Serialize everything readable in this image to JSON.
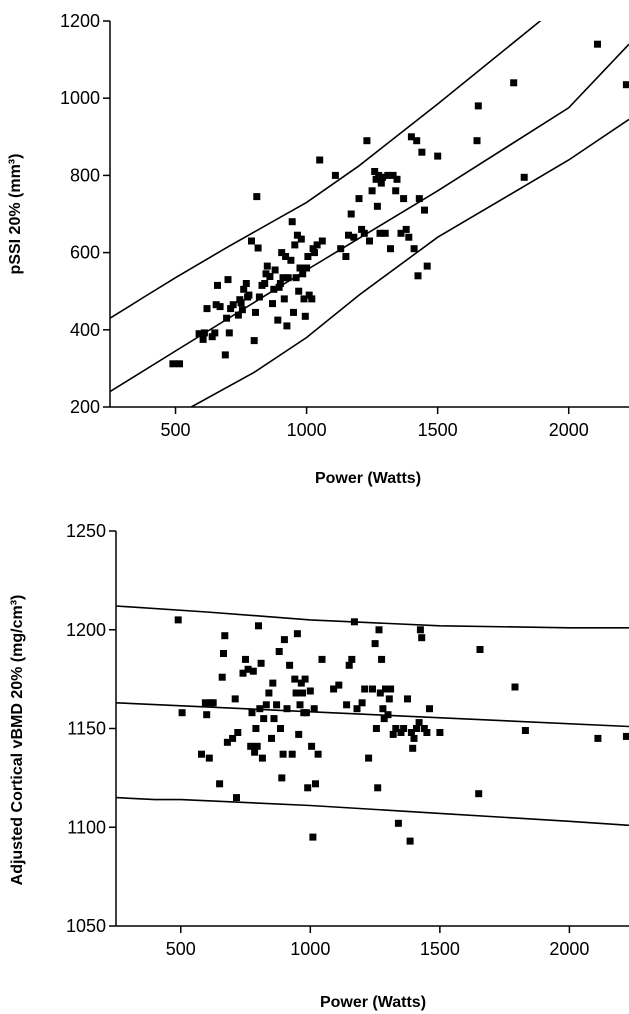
{
  "chart_data": [
    {
      "type": "scatter",
      "xlabel": "Power (Watts)",
      "ylabel": "pSSI 20% (mm³)",
      "xlim": [
        250,
        2230
      ],
      "ylim": [
        200,
        1200
      ],
      "xticks": [
        500,
        1000,
        1500,
        2000
      ],
      "yticks": [
        200,
        400,
        600,
        800,
        1000,
        1200
      ],
      "lines": [
        {
          "points": [
            [
              250,
              430
            ],
            [
              380,
              485
            ],
            [
              500,
              535
            ],
            [
              700,
              615
            ],
            [
              1000,
              730
            ],
            [
              1200,
              825
            ],
            [
              1500,
              985
            ],
            [
              1900,
              1205
            ]
          ]
        },
        {
          "points": [
            [
              250,
              240
            ],
            [
              500,
              345
            ],
            [
              1000,
              555
            ],
            [
              1500,
              760
            ],
            [
              2000,
              975
            ],
            [
              2230,
              1140
            ]
          ]
        },
        {
          "points": [
            [
              560,
              200
            ],
            [
              800,
              290
            ],
            [
              1000,
              380
            ],
            [
              1200,
              490
            ],
            [
              1500,
              640
            ],
            [
              2000,
              840
            ],
            [
              2230,
              945
            ]
          ]
        }
      ],
      "points": [
        [
          490,
          312
        ],
        [
          515,
          312
        ],
        [
          590,
          390
        ],
        [
          605,
          375
        ],
        [
          610,
          392
        ],
        [
          620,
          455
        ],
        [
          640,
          382
        ],
        [
          650,
          392
        ],
        [
          655,
          465
        ],
        [
          660,
          515
        ],
        [
          670,
          460
        ],
        [
          690,
          335
        ],
        [
          695,
          430
        ],
        [
          700,
          530
        ],
        [
          705,
          392
        ],
        [
          710,
          455
        ],
        [
          720,
          465
        ],
        [
          740,
          438
        ],
        [
          745,
          478
        ],
        [
          750,
          470
        ],
        [
          755,
          452
        ],
        [
          760,
          505
        ],
        [
          770,
          520
        ],
        [
          775,
          485
        ],
        [
          780,
          490
        ],
        [
          790,
          630
        ],
        [
          800,
          372
        ],
        [
          805,
          445
        ],
        [
          810,
          745
        ],
        [
          815,
          612
        ],
        [
          820,
          485
        ],
        [
          830,
          515
        ],
        [
          840,
          520
        ],
        [
          845,
          545
        ],
        [
          850,
          565
        ],
        [
          860,
          538
        ],
        [
          870,
          468
        ],
        [
          875,
          505
        ],
        [
          880,
          555
        ],
        [
          890,
          425
        ],
        [
          895,
          510
        ],
        [
          900,
          520
        ],
        [
          905,
          600
        ],
        [
          910,
          535
        ],
        [
          915,
          480
        ],
        [
          920,
          590
        ],
        [
          925,
          410
        ],
        [
          930,
          535
        ],
        [
          940,
          580
        ],
        [
          945,
          680
        ],
        [
          950,
          445
        ],
        [
          955,
          620
        ],
        [
          960,
          535
        ],
        [
          965,
          645
        ],
        [
          970,
          500
        ],
        [
          975,
          560
        ],
        [
          980,
          635
        ],
        [
          985,
          545
        ],
        [
          990,
          480
        ],
        [
          995,
          435
        ],
        [
          1000,
          560
        ],
        [
          1005,
          590
        ],
        [
          1010,
          490
        ],
        [
          1020,
          480
        ],
        [
          1025,
          610
        ],
        [
          1030,
          600
        ],
        [
          1040,
          620
        ],
        [
          1050,
          840
        ],
        [
          1060,
          630
        ],
        [
          1110,
          800
        ],
        [
          1130,
          610
        ],
        [
          1150,
          590
        ],
        [
          1160,
          645
        ],
        [
          1170,
          700
        ],
        [
          1180,
          640
        ],
        [
          1200,
          740
        ],
        [
          1210,
          660
        ],
        [
          1220,
          650
        ],
        [
          1230,
          890
        ],
        [
          1240,
          630
        ],
        [
          1250,
          760
        ],
        [
          1260,
          810
        ],
        [
          1265,
          790
        ],
        [
          1270,
          720
        ],
        [
          1275,
          800
        ],
        [
          1280,
          650
        ],
        [
          1285,
          780
        ],
        [
          1290,
          795
        ],
        [
          1300,
          650
        ],
        [
          1310,
          800
        ],
        [
          1320,
          610
        ],
        [
          1330,
          800
        ],
        [
          1340,
          760
        ],
        [
          1345,
          790
        ],
        [
          1360,
          650
        ],
        [
          1370,
          740
        ],
        [
          1380,
          660
        ],
        [
          1390,
          640
        ],
        [
          1400,
          900
        ],
        [
          1410,
          610
        ],
        [
          1420,
          890
        ],
        [
          1425,
          540
        ],
        [
          1430,
          740
        ],
        [
          1440,
          860
        ],
        [
          1450,
          710
        ],
        [
          1460,
          565
        ],
        [
          1500,
          850
        ],
        [
          1650,
          890
        ],
        [
          1655,
          980
        ],
        [
          1790,
          1040
        ],
        [
          1830,
          795
        ],
        [
          2110,
          1140
        ],
        [
          2220,
          1035
        ]
      ]
    },
    {
      "type": "scatter",
      "xlabel": "Power (Watts)",
      "ylabel": "Adjusted Cortical vBMD 20% (mg/cm³)",
      "xlim": [
        250,
        2230
      ],
      "ylim": [
        1050,
        1250
      ],
      "xticks": [
        500,
        1000,
        1500,
        2000
      ],
      "yticks": [
        1050,
        1100,
        1150,
        1200,
        1250
      ],
      "lines": [
        {
          "points": [
            [
              250,
              1212
            ],
            [
              600,
              1209
            ],
            [
              1000,
              1205
            ],
            [
              1500,
              1202
            ],
            [
              2000,
              1201
            ],
            [
              2230,
              1201
            ]
          ]
        },
        {
          "points": [
            [
              250,
              1163
            ],
            [
              2230,
              1151
            ]
          ]
        },
        {
          "points": [
            [
              250,
              1115
            ],
            [
              400,
              1114
            ],
            [
              500,
              1114
            ],
            [
              1000,
              1111
            ],
            [
              1500,
              1107
            ],
            [
              2000,
              1103
            ],
            [
              2230,
              1101
            ]
          ]
        }
      ],
      "points": [
        [
          490,
          1205
        ],
        [
          505,
          1158
        ],
        [
          580,
          1137
        ],
        [
          595,
          1163
        ],
        [
          600,
          1157
        ],
        [
          610,
          1135
        ],
        [
          615,
          1163
        ],
        [
          625,
          1163
        ],
        [
          650,
          1122
        ],
        [
          660,
          1176
        ],
        [
          665,
          1188
        ],
        [
          670,
          1197
        ],
        [
          680,
          1143
        ],
        [
          700,
          1145
        ],
        [
          710,
          1165
        ],
        [
          715,
          1115
        ],
        [
          720,
          1148
        ],
        [
          740,
          1178
        ],
        [
          750,
          1185
        ],
        [
          760,
          1180
        ],
        [
          770,
          1141
        ],
        [
          775,
          1158
        ],
        [
          780,
          1179
        ],
        [
          785,
          1138
        ],
        [
          790,
          1150
        ],
        [
          795,
          1141
        ],
        [
          800,
          1202
        ],
        [
          805,
          1160
        ],
        [
          810,
          1183
        ],
        [
          815,
          1135
        ],
        [
          820,
          1155
        ],
        [
          830,
          1162
        ],
        [
          840,
          1168
        ],
        [
          850,
          1145
        ],
        [
          855,
          1173
        ],
        [
          860,
          1155
        ],
        [
          870,
          1162
        ],
        [
          880,
          1189
        ],
        [
          885,
          1150
        ],
        [
          890,
          1125
        ],
        [
          895,
          1137
        ],
        [
          900,
          1195
        ],
        [
          910,
          1160
        ],
        [
          920,
          1182
        ],
        [
          930,
          1137
        ],
        [
          940,
          1175
        ],
        [
          945,
          1168
        ],
        [
          950,
          1198
        ],
        [
          955,
          1147
        ],
        [
          960,
          1162
        ],
        [
          965,
          1173
        ],
        [
          970,
          1168
        ],
        [
          975,
          1158
        ],
        [
          980,
          1175
        ],
        [
          985,
          1158
        ],
        [
          990,
          1120
        ],
        [
          1000,
          1169
        ],
        [
          1005,
          1141
        ],
        [
          1010,
          1095
        ],
        [
          1015,
          1160
        ],
        [
          1020,
          1122
        ],
        [
          1030,
          1137
        ],
        [
          1045,
          1185
        ],
        [
          1090,
          1170
        ],
        [
          1110,
          1172
        ],
        [
          1140,
          1162
        ],
        [
          1150,
          1182
        ],
        [
          1160,
          1185
        ],
        [
          1170,
          1204
        ],
        [
          1180,
          1160
        ],
        [
          1200,
          1163
        ],
        [
          1210,
          1170
        ],
        [
          1225,
          1135
        ],
        [
          1240,
          1170
        ],
        [
          1250,
          1193
        ],
        [
          1255,
          1150
        ],
        [
          1260,
          1120
        ],
        [
          1265,
          1200
        ],
        [
          1270,
          1168
        ],
        [
          1275,
          1185
        ],
        [
          1280,
          1160
        ],
        [
          1285,
          1155
        ],
        [
          1290,
          1170
        ],
        [
          1300,
          1157
        ],
        [
          1305,
          1165
        ],
        [
          1310,
          1170
        ],
        [
          1320,
          1147
        ],
        [
          1330,
          1150
        ],
        [
          1340,
          1102
        ],
        [
          1350,
          1148
        ],
        [
          1360,
          1150
        ],
        [
          1375,
          1165
        ],
        [
          1385,
          1093
        ],
        [
          1390,
          1148
        ],
        [
          1395,
          1140
        ],
        [
          1400,
          1145
        ],
        [
          1410,
          1150
        ],
        [
          1420,
          1153
        ],
        [
          1425,
          1200
        ],
        [
          1430,
          1196
        ],
        [
          1440,
          1150
        ],
        [
          1450,
          1148
        ],
        [
          1460,
          1160
        ],
        [
          1500,
          1148
        ],
        [
          1650,
          1117
        ],
        [
          1655,
          1190
        ],
        [
          1790,
          1171
        ],
        [
          1830,
          1149
        ],
        [
          2110,
          1145
        ],
        [
          2220,
          1146
        ]
      ]
    }
  ]
}
